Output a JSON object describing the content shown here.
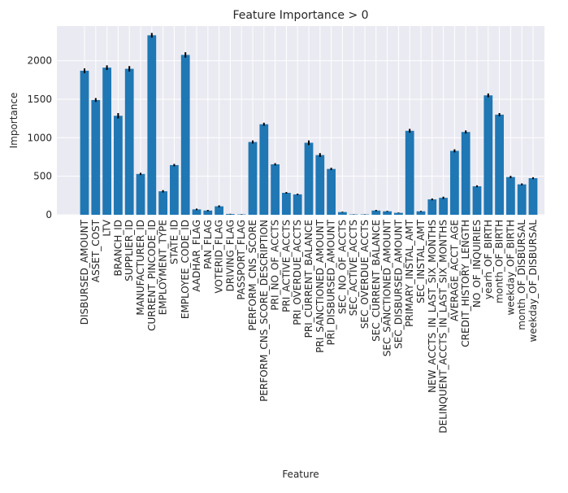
{
  "chart_data": {
    "type": "bar",
    "title": "Feature Importance > 0",
    "xlabel": "Feature",
    "ylabel": "Importance",
    "ylim": [
      0,
      2450
    ],
    "yticks": [
      0,
      500,
      1000,
      1500,
      2000
    ],
    "grid": true,
    "error_bars": true,
    "bar_color": "#1f77b4",
    "background_color": "#eaeaf2",
    "categories": [
      "DISBURSED_AMOUNT",
      "ASSET_COST",
      "LTV",
      "BRANCH_ID",
      "SUPPLIER_ID",
      "MANUFACTURER_ID",
      "CURRENT_PINCODE_ID",
      "EMPLOYMENT_TYPE",
      "STATE_ID",
      "EMPLOYEE_CODE_ID",
      "AADHAR_FLAG",
      "PAN_FLAG",
      "VOTERID_FLAG",
      "DRIVING_FLAG",
      "PASSPORT_FLAG",
      "PERFORM_CNS_SCORE",
      "PERFORM_CNS_SCORE_DESCRIPTION",
      "PRI_NO_OF_ACCTS",
      "PRI_ACTIVE_ACCTS",
      "PRI_OVERDUE_ACCTS",
      "PRI_CURRENT_BALANCE",
      "PRI_SANCTIONED_AMOUNT",
      "PRI_DISBURSED_AMOUNT",
      "SEC_NO_OF_ACCTS",
      "SEC_ACTIVE_ACCTS",
      "SEC_OVERDUE_ACCTS",
      "SEC_CURRENT_BALANCE",
      "SEC_SANCTIONED_AMOUNT",
      "SEC_DISBURSED_AMOUNT",
      "PRIMARY_INSTAL_AMT",
      "SEC_INSTAL_AMT",
      "NEW_ACCTS_IN_LAST_SIX_MONTHS",
      "DELINQUENT_ACCTS_IN_LAST_SIX_MONTHS",
      "AVERAGE_ACCT_AGE",
      "CREDIT_HISTORY_LENGTH",
      "NO_OF_INQUIRIES",
      "yearh_OF_BIRTH",
      "month_OF_BIRTH",
      "weekday_OF_BIRTH",
      "month_OF_DISBURSAL",
      "weekday_OF_DISBURSAL"
    ],
    "values": [
      1870,
      1490,
      1910,
      1285,
      1895,
      530,
      2330,
      305,
      645,
      2075,
      70,
      55,
      110,
      10,
      5,
      945,
      1175,
      655,
      285,
      265,
      935,
      775,
      595,
      35,
      5,
      5,
      55,
      45,
      25,
      1090,
      45,
      200,
      220,
      830,
      1075,
      370,
      1550,
      1300,
      490,
      395,
      475
    ],
    "errors": [
      30,
      25,
      30,
      35,
      35,
      15,
      30,
      15,
      15,
      35,
      10,
      8,
      12,
      3,
      3,
      20,
      20,
      15,
      10,
      10,
      30,
      25,
      15,
      5,
      2,
      2,
      8,
      6,
      4,
      25,
      6,
      12,
      15,
      20,
      20,
      12,
      25,
      20,
      15,
      12,
      12
    ]
  }
}
